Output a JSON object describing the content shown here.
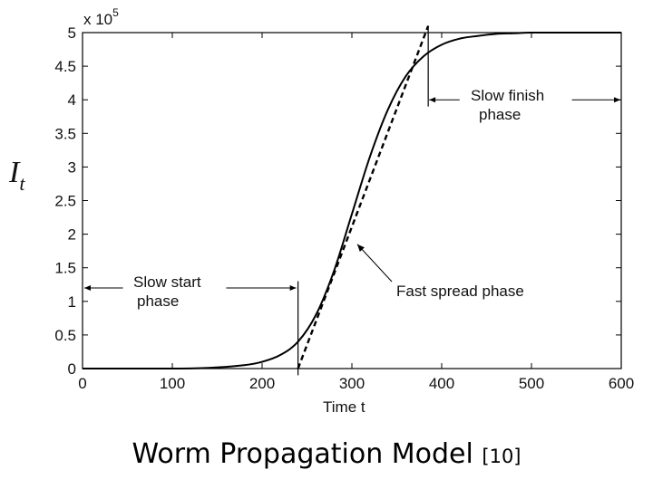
{
  "chart_data": {
    "type": "line",
    "exponent_label": "x 10",
    "exponent_power": "5",
    "xlabel": "Time t",
    "ylabel": "I",
    "ylabel_sub": "t",
    "xlim": [
      0,
      600
    ],
    "ylim": [
      0,
      5
    ],
    "y_scale_factor": 100000,
    "x_ticks": [
      0,
      100,
      200,
      300,
      400,
      500,
      600
    ],
    "y_ticks": [
      0,
      0.5,
      1,
      1.5,
      2,
      2.5,
      3,
      3.5,
      4,
      4.5,
      5
    ],
    "grid": false,
    "series": [
      {
        "style": "solid",
        "x": [
          0,
          100,
          140,
          180,
          200,
          220,
          240,
          260,
          280,
          300,
          320,
          340,
          360,
          380,
          400,
          420,
          440,
          460,
          480,
          500,
          520,
          560,
          600
        ],
        "y": [
          0,
          0,
          0.01,
          0.05,
          0.1,
          0.2,
          0.4,
          0.8,
          1.45,
          2.3,
          3.15,
          3.85,
          4.35,
          4.65,
          4.82,
          4.91,
          4.95,
          4.98,
          4.99,
          5,
          5,
          5,
          5
        ]
      },
      {
        "style": "dashed",
        "x": [
          240,
          385
        ],
        "y": [
          0,
          5.1
        ]
      }
    ],
    "markers": [
      {
        "x": 240,
        "y_from": -0.1,
        "y_to": 1.3
      },
      {
        "x": 385,
        "y_from": 3.9,
        "y_to": 5.1
      }
    ],
    "annotations": [
      {
        "id": "slow_start",
        "lines": [
          "Slow start",
          "phase"
        ]
      },
      {
        "id": "fast_spread",
        "lines": [
          "Fast spread phase"
        ]
      },
      {
        "id": "slow_finish",
        "lines": [
          "Slow finish",
          "phase"
        ]
      }
    ]
  },
  "caption": {
    "text": "Worm Propagation Model",
    "ref": "[10]"
  }
}
